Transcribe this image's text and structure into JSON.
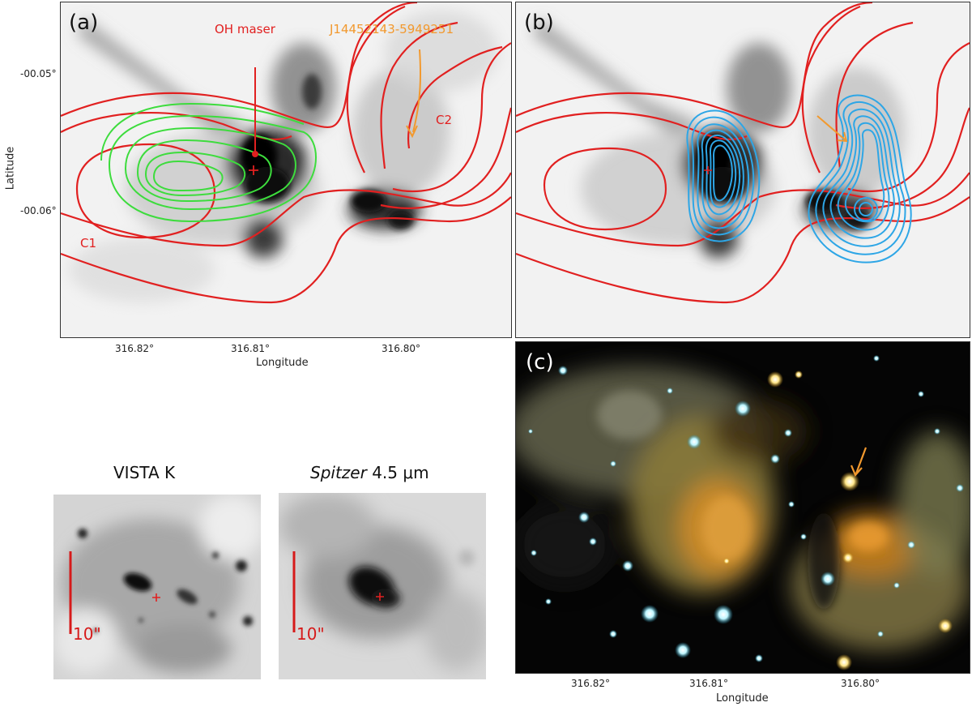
{
  "figure": {
    "panel_a": {
      "tag": "(a)",
      "annotations": {
        "oh_maser": "OH maser",
        "source": "J14452143-5949251",
        "c1": "C1",
        "c2": "C2"
      },
      "x_ticks": [
        "316.82°",
        "316.81°",
        "316.80°"
      ],
      "y_ticks": [
        "-00.05°",
        "-00.06°"
      ],
      "xlabel": "Longitude",
      "ylabel": "Latitude"
    },
    "panel_b": {
      "tag": "(b)"
    },
    "panel_c": {
      "tag": "(c)",
      "x_ticks": [
        "316.82°",
        "316.81°",
        "316.80°"
      ],
      "xlabel": "Longitude"
    },
    "thumbs": {
      "vista_title": "VISTA  K",
      "spitzer_title_italic": "Spitzer",
      "spitzer_title_rest": "4.5 μm",
      "scale_label": "10\""
    }
  },
  "colors": {
    "red_contour": "#e12020",
    "green_contour": "#3ddc3d",
    "blue_contour": "#2ea6e6",
    "orange_arrow": "#f2992e"
  }
}
